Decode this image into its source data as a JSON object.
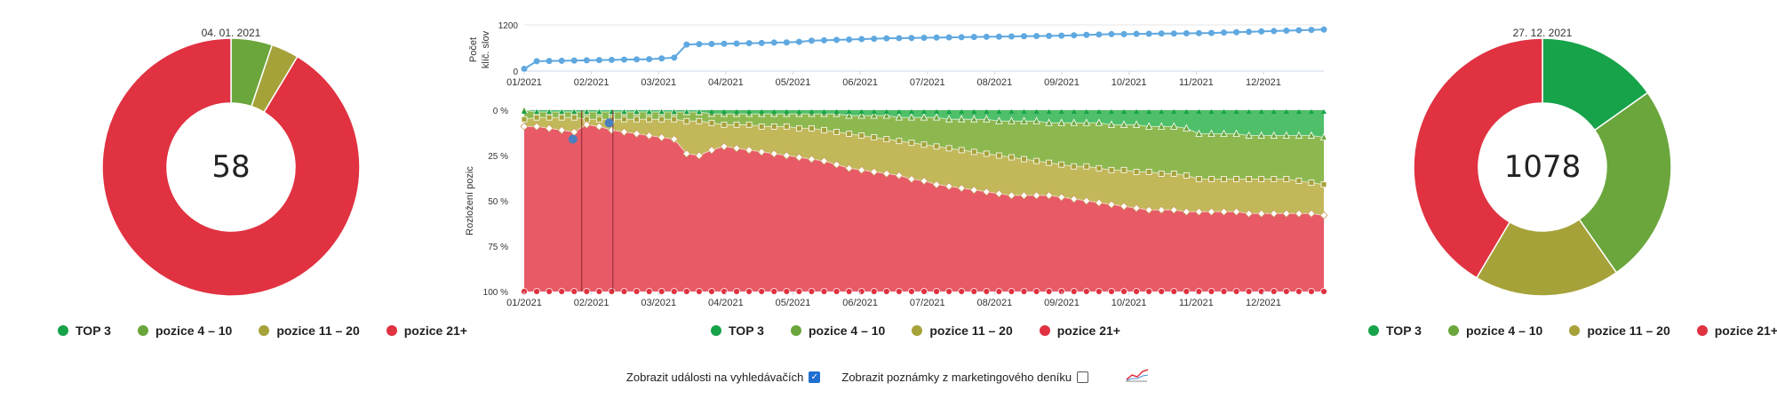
{
  "legend": [
    {
      "label": "TOP 3",
      "color": "#17a34a"
    },
    {
      "label": "pozice 4 – 10",
      "color": "#6aa63c"
    },
    {
      "label": "pozice 11 – 20",
      "color": "#a6a23a"
    },
    {
      "label": "pozice 21+",
      "color": "#e03241"
    }
  ],
  "controls": {
    "events_label": "Zobrazit události na vyhledávačích",
    "events_checked": true,
    "notes_label": "Zobrazit poznámky z marketingového deníku",
    "notes_checked": false,
    "chart_icon": "line-chart-icon"
  },
  "chart_data": [
    {
      "type": "pie",
      "title": "04. 01. 2021",
      "center_label": "58",
      "categories": [
        "TOP 3",
        "pozice 4 – 10",
        "pozice 11 – 20",
        "pozice 21+"
      ],
      "values": [
        0,
        3,
        2,
        53
      ],
      "colors": [
        "#17a34a",
        "#6aa63c",
        "#a6a23a",
        "#e03241"
      ]
    },
    {
      "type": "line",
      "ylabel": "Počet klíč. slov",
      "yticks": [
        "0",
        "1200"
      ],
      "ylim": [
        0,
        1200
      ],
      "xticks": [
        "01/2021",
        "02/2021",
        "03/2021",
        "04/2021",
        "05/2021",
        "06/2021",
        "07/2021",
        "08/2021",
        "09/2021",
        "10/2021",
        "11/2021",
        "12/2021"
      ],
      "values": [
        58,
        256,
        262,
        268,
        274,
        280,
        286,
        292,
        298,
        304,
        310,
        330,
        350,
        690,
        700,
        705,
        710,
        715,
        725,
        730,
        740,
        745,
        760,
        790,
        800,
        810,
        820,
        830,
        840,
        850,
        855,
        860,
        865,
        870,
        875,
        880,
        885,
        890,
        895,
        900,
        905,
        910,
        915,
        920,
        930,
        940,
        950,
        960,
        960,
        965,
        970,
        975,
        975,
        980,
        985,
        990,
        1000,
        1010,
        1020,
        1030,
        1040,
        1050,
        1060,
        1070,
        1078
      ],
      "series_color": "#5fa8e0"
    },
    {
      "type": "area",
      "stacked_percent": true,
      "ylabel": "Rozložení pozic",
      "yticks": [
        "0 %",
        "25 %",
        "50 %",
        "75 %",
        "100 %"
      ],
      "xticks": [
        "01/2021",
        "02/2021",
        "03/2021",
        "04/2021",
        "05/2021",
        "06/2021",
        "07/2021",
        "08/2021",
        "09/2021",
        "10/2021",
        "11/2021",
        "12/2021"
      ],
      "series": [
        {
          "name": "TOP 3",
          "color": "#17a34a",
          "boundary": [
            0,
            0,
            0,
            0,
            0,
            0,
            0,
            0,
            0,
            0,
            0,
            0,
            0,
            0,
            0,
            0,
            0,
            0,
            0,
            0,
            0,
            0,
            0,
            0,
            0,
            0,
            0,
            0,
            0,
            0,
            0,
            0,
            0,
            0,
            0,
            0,
            0,
            0,
            0,
            0,
            0,
            0,
            0,
            0,
            0,
            0,
            0,
            0,
            0,
            0,
            0,
            0,
            0,
            0,
            0,
            0,
            0,
            0,
            0,
            0,
            0,
            0,
            0,
            0,
            0
          ]
        },
        {
          "name": "pozice 4 – 10",
          "color": "#6aa63c",
          "boundary": [
            0,
            1,
            1,
            1,
            1,
            1,
            1,
            1,
            1,
            1,
            1,
            1,
            1,
            1,
            1,
            2,
            2,
            2,
            2,
            2,
            2,
            2,
            2,
            2,
            2,
            2,
            3,
            3,
            3,
            3,
            4,
            4,
            4,
            4,
            5,
            5,
            5,
            5,
            6,
            6,
            6,
            6,
            7,
            7,
            7,
            7,
            7,
            8,
            8,
            8,
            9,
            9,
            9,
            10,
            13,
            13,
            13,
            13,
            14,
            14,
            14,
            14,
            14,
            14,
            15
          ]
        },
        {
          "name": "pozice 11 – 20",
          "color": "#a6a23a",
          "boundary": [
            5,
            4,
            4,
            4,
            4,
            5,
            5,
            5,
            5,
            5,
            5,
            5,
            5,
            6,
            6,
            7,
            8,
            8,
            8,
            9,
            9,
            9,
            10,
            10,
            11,
            12,
            13,
            14,
            15,
            16,
            17,
            18,
            19,
            20,
            21,
            22,
            23,
            24,
            25,
            26,
            27,
            28,
            29,
            30,
            31,
            31,
            32,
            33,
            33,
            34,
            34,
            35,
            35,
            36,
            38,
            38,
            38,
            38,
            38,
            38,
            38,
            38,
            39,
            40,
            41
          ]
        },
        {
          "name": "pozice 21+",
          "color": "#e03241",
          "boundary": [
            9,
            9,
            10,
            11,
            12,
            8,
            9,
            11,
            12,
            13,
            14,
            15,
            16,
            24,
            25,
            22,
            20,
            21,
            22,
            23,
            24,
            25,
            26,
            27,
            28,
            30,
            32,
            33,
            34,
            35,
            36,
            38,
            39,
            41,
            42,
            43,
            44,
            45,
            46,
            47,
            47,
            47,
            47,
            48,
            49,
            50,
            51,
            52,
            53,
            54,
            55,
            55,
            55,
            56,
            56,
            56,
            56,
            56,
            57,
            57,
            57,
            57,
            57,
            57,
            58
          ]
        },
        {
          "name": "bottom",
          "color": "#e03241",
          "boundary": [
            100,
            100,
            100,
            100,
            100,
            100,
            100,
            100,
            100,
            100,
            100,
            100,
            100,
            100,
            100,
            100,
            100,
            100,
            100,
            100,
            100,
            100,
            100,
            100,
            100,
            100,
            100,
            100,
            100,
            100,
            100,
            100,
            100,
            100,
            100,
            100,
            100,
            100,
            100,
            100,
            100,
            100,
            100,
            100,
            100,
            100,
            100,
            100,
            100,
            100,
            100,
            100,
            100,
            100,
            100,
            100,
            100,
            100,
            100,
            100,
            100,
            100,
            100,
            100,
            100
          ]
        }
      ],
      "events": [
        "02/2021",
        "02/2021"
      ]
    },
    {
      "type": "pie",
      "title": "27. 12. 2021",
      "center_label": "1078",
      "categories": [
        "TOP 3",
        "pozice 4 – 10",
        "pozice 11 – 20",
        "pozice 21+"
      ],
      "values": [
        164,
        270,
        197,
        447
      ],
      "colors": [
        "#17a34a",
        "#6aa63c",
        "#a6a23a",
        "#e03241"
      ]
    }
  ]
}
